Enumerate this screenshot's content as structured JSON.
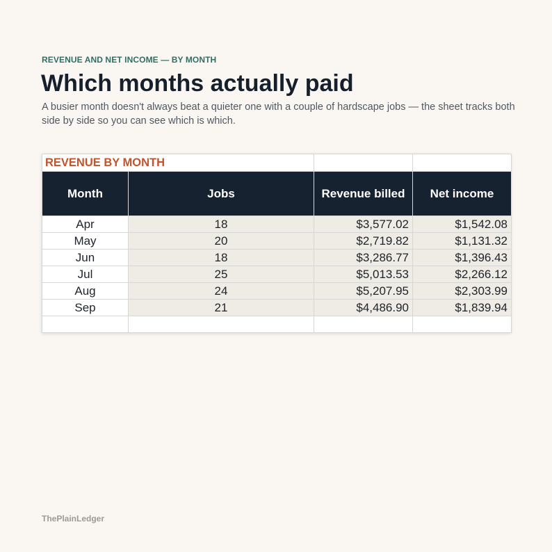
{
  "header": {
    "eyebrow": "REVENUE AND NET INCOME — BY MONTH",
    "title": "Which months actually paid",
    "subtitle": "A busier month doesn't always beat a quieter one with a couple of hardscape jobs — the sheet tracks both side by side so you can see which is which."
  },
  "sheet": {
    "title": "REVENUE BY MONTH",
    "columns": [
      "Month",
      "Jobs",
      "Revenue billed",
      "Net income"
    ],
    "rows": [
      {
        "month": "Apr",
        "jobs": "18",
        "revenue": "$3,577.02",
        "net": "$1,542.08"
      },
      {
        "month": "May",
        "jobs": "20",
        "revenue": "$2,719.82",
        "net": "$1,131.32"
      },
      {
        "month": "Jun",
        "jobs": "18",
        "revenue": "$3,286.77",
        "net": "$1,396.43"
      },
      {
        "month": "Jul",
        "jobs": "25",
        "revenue": "$5,013.53",
        "net": "$2,266.12"
      },
      {
        "month": "Aug",
        "jobs": "24",
        "revenue": "$5,207.95",
        "net": "$2,303.99"
      },
      {
        "month": "Sep",
        "jobs": "21",
        "revenue": "$4,486.90",
        "net": "$1,839.94"
      }
    ]
  },
  "footer": {
    "brand": "ThePlainLedger"
  },
  "colors": {
    "background": "#faf7f2",
    "eyebrow": "#2f6e62",
    "sheet_title": "#c0542a",
    "header_fill": "#172230",
    "data_fill": "#efebe5"
  }
}
